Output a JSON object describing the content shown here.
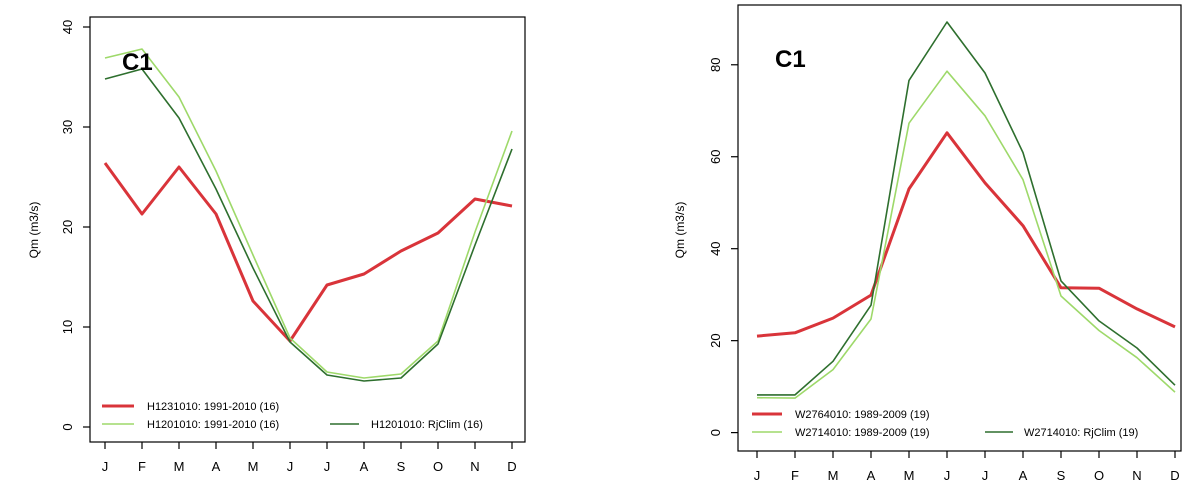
{
  "chart_data": [
    {
      "type": "line",
      "panel_label": "C1",
      "ylabel": "Qm (m3/s)",
      "xlabel": "",
      "categories": [
        "J",
        "F",
        "M",
        "A",
        "M",
        "J",
        "J",
        "A",
        "S",
        "O",
        "N",
        "D"
      ],
      "ylim": [
        -1.5,
        41
      ],
      "yticks": [
        0,
        10,
        20,
        30,
        40
      ],
      "grid": false,
      "legend_position": "bottom-left",
      "series": [
        {
          "name": "H1231010: 1991-2010 (16)",
          "color": "#d9343a",
          "width": 3,
          "values": [
            26.4,
            21.3,
            26.0,
            21.3,
            12.6,
            8.6,
            14.2,
            15.3,
            17.6,
            19.4,
            22.8,
            22.1
          ]
        },
        {
          "name": "H1201010: 1991-2010 (16)",
          "color": "#9ed96a",
          "width": 1.6,
          "values": [
            36.9,
            37.8,
            33.0,
            25.6,
            17.2,
            8.9,
            5.5,
            4.9,
            5.3,
            8.6,
            19.5,
            29.6
          ]
        },
        {
          "name": "H1201010: RjClim (16)",
          "color": "#2e6f2e",
          "width": 1.6,
          "values": [
            34.8,
            35.8,
            30.9,
            23.8,
            15.9,
            8.5,
            5.2,
            4.6,
            4.9,
            8.3,
            18.2,
            27.8
          ]
        }
      ]
    },
    {
      "type": "line",
      "panel_label": "C1",
      "ylabel": "Qm (m3/s)",
      "xlabel": "",
      "categories": [
        "J",
        "F",
        "M",
        "A",
        "M",
        "J",
        "J",
        "A",
        "S",
        "O",
        "N",
        "D"
      ],
      "ylim": [
        -4,
        93
      ],
      "yticks": [
        0,
        20,
        40,
        60,
        80
      ],
      "grid": false,
      "legend_position": "bottom-left",
      "series": [
        {
          "name": "W2764010: 1989-2009 (19)",
          "color": "#d9343a",
          "width": 3,
          "values": [
            21.0,
            21.7,
            24.9,
            29.9,
            53.0,
            65.2,
            54.3,
            45.0,
            31.5,
            31.4,
            26.9,
            23.0
          ]
        },
        {
          "name": "W2714010: 1989-2009 (19)",
          "color": "#9ed96a",
          "width": 1.6,
          "values": [
            7.6,
            7.5,
            13.7,
            24.7,
            67.3,
            78.6,
            68.9,
            55.0,
            29.7,
            22.2,
            16.3,
            8.8
          ]
        },
        {
          "name": "W2714010: RjClim (19)",
          "color": "#2e6f2e",
          "width": 1.6,
          "values": [
            8.2,
            8.2,
            15.5,
            27.7,
            76.6,
            89.3,
            78.2,
            60.9,
            33.0,
            24.3,
            18.4,
            10.3
          ]
        }
      ]
    }
  ]
}
